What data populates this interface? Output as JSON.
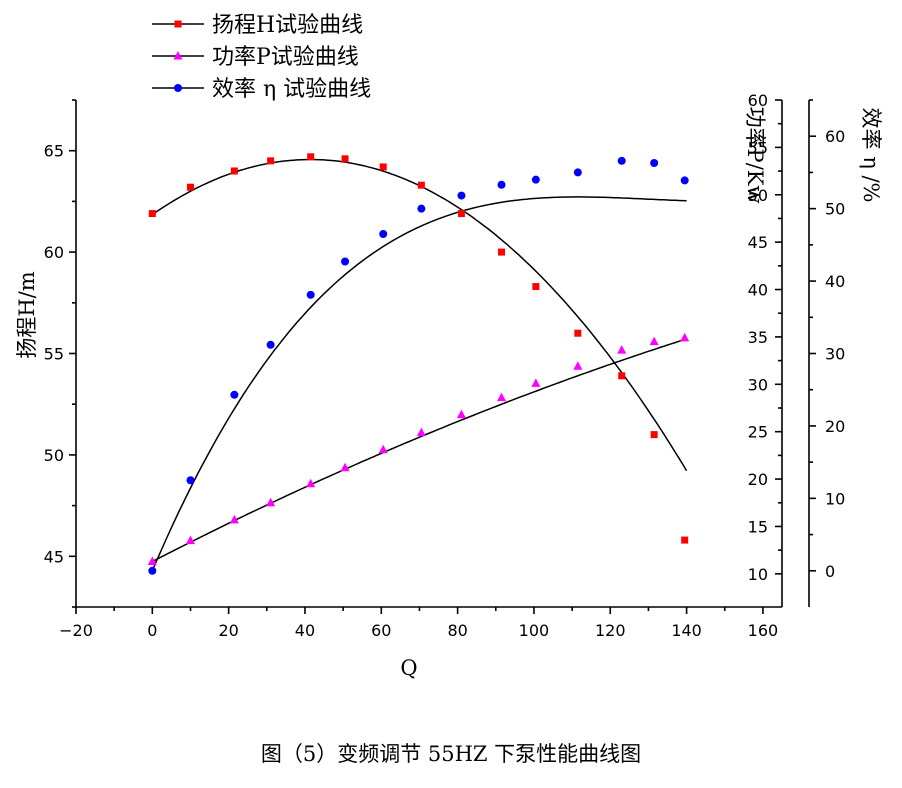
{
  "chart_data": {
    "type": "scatter",
    "xlabel": "Q",
    "xlim": [
      -20,
      165
    ],
    "x_ticks": [
      -20,
      0,
      20,
      40,
      60,
      80,
      100,
      120,
      140,
      160
    ],
    "x_tick_labels": [
      "−20",
      "0",
      "20",
      "40",
      "60",
      "80",
      "100",
      "120",
      "140",
      "160"
    ],
    "axes": {
      "H": {
        "label": "扬程H/m",
        "lim": [
          42.5,
          67.5
        ],
        "ticks": [
          45,
          50,
          55,
          60,
          65
        ]
      },
      "P": {
        "label": "功率P/Kw",
        "lim": [
          6.5,
          60
        ],
        "ticks": [
          10,
          15,
          20,
          25,
          30,
          35,
          40,
          45,
          50,
          55,
          60
        ]
      },
      "eta": {
        "label": "效率 η /%",
        "lim": [
          -5,
          65
        ],
        "ticks": [
          0,
          10,
          20,
          30,
          40,
          50,
          60
        ]
      }
    },
    "legend_position": "top-left",
    "series": [
      {
        "name": "扬程H试验曲线",
        "axis": "H",
        "marker": "square",
        "color": "#ff0000",
        "x": [
          0,
          10,
          21.5,
          31,
          41.5,
          50.5,
          60.5,
          70.5,
          81,
          91.5,
          100.5,
          111.5,
          123,
          131.5,
          139.5
        ],
        "y": [
          61.9,
          63.2,
          64.0,
          64.5,
          64.7,
          64.6,
          64.2,
          63.3,
          61.9,
          60.0,
          58.3,
          56.0,
          53.9,
          51.0,
          45.8
        ],
        "fit": [
          61.85,
          0.131,
          -0.00158
        ]
      },
      {
        "name": "功率P试验曲线",
        "axis": "P",
        "marker": "triangle",
        "color": "#ff00ff",
        "x": [
          0,
          10,
          21.5,
          31,
          41.5,
          50.5,
          60.5,
          70.5,
          81,
          91.5,
          100.5,
          111.5,
          123,
          131.5,
          139.5
        ],
        "y": [
          11.3,
          13.5,
          15.7,
          17.5,
          19.5,
          21.2,
          23.1,
          24.9,
          26.8,
          28.6,
          30.1,
          31.9,
          33.6,
          34.5,
          34.9
        ],
        "fit": [
          11.3,
          0.207,
          -0.00028
        ]
      },
      {
        "name": "效率 η 试验曲线",
        "axis": "eta",
        "marker": "circle",
        "color": "#0000ff",
        "x": [
          0,
          10,
          21.5,
          31,
          41.5,
          50.5,
          60.5,
          70.5,
          81,
          91.5,
          100.5,
          111.5,
          123,
          131.5,
          139.5
        ],
        "y": [
          0,
          12.5,
          24.3,
          31.2,
          38.1,
          42.7,
          46.5,
          50.0,
          51.8,
          53.3,
          54.0,
          55.0,
          56.6,
          56.3,
          53.9
        ],
        "fit": [
          0,
          1.238,
          -0.00975,
          2.51e-05
        ]
      }
    ]
  },
  "caption": "图（5）变频调节 55HZ 下泵性能曲线图"
}
